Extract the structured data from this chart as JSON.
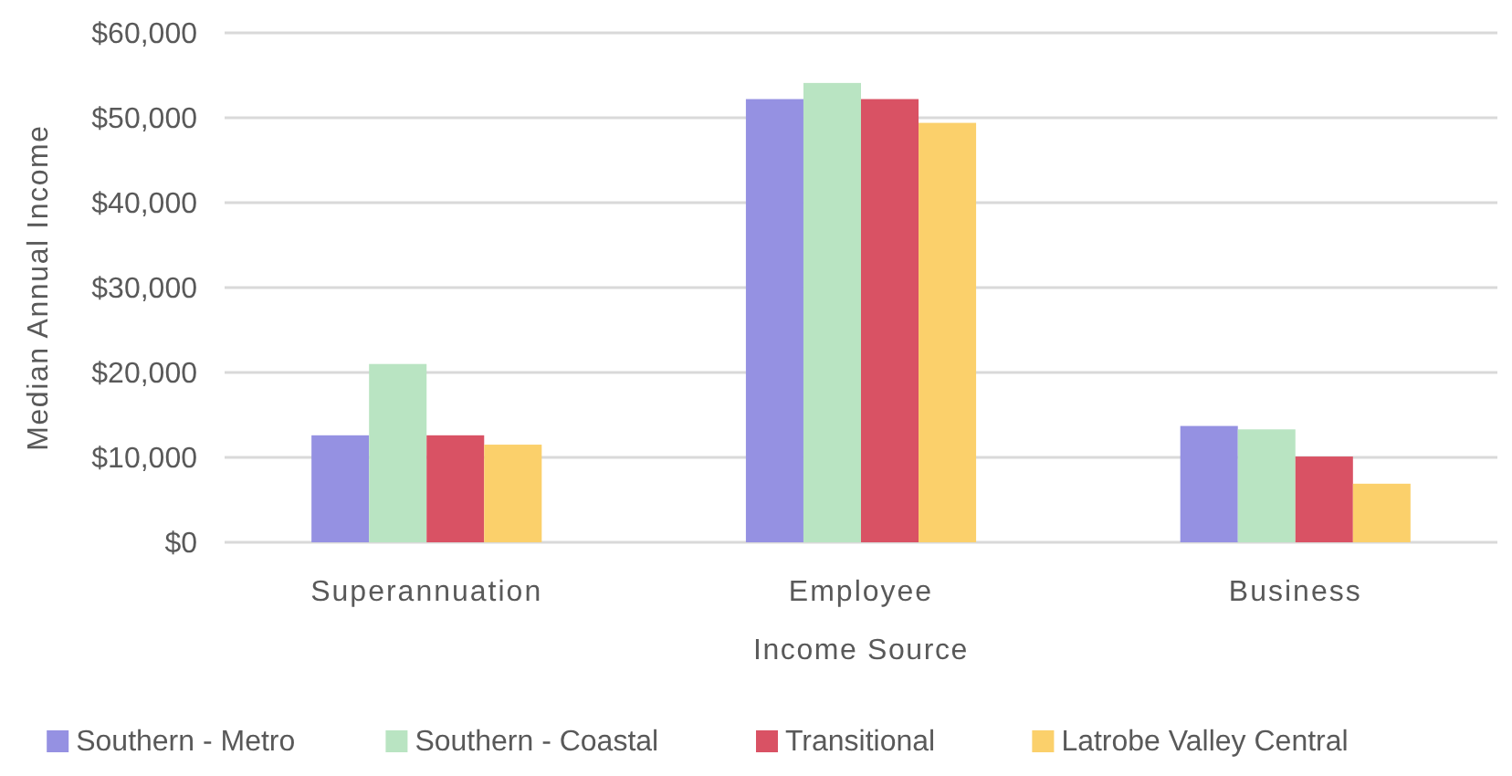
{
  "chart_data": {
    "type": "bar",
    "xlabel": "Income Source",
    "ylabel": "Median Annual Income",
    "categories": [
      "Superannuation",
      "Employee",
      "Business"
    ],
    "series": [
      {
        "name": "Southern - Metro",
        "color": "#9591e2",
        "values": [
          12600,
          52200,
          13700
        ]
      },
      {
        "name": "Southern - Coastal",
        "color": "#b9e4c2",
        "values": [
          21000,
          54100,
          13300
        ]
      },
      {
        "name": "Transitional",
        "color": "#d95264",
        "values": [
          12600,
          52200,
          10100
        ]
      },
      {
        "name": "Latrobe Valley Central",
        "color": "#fbd06b",
        "values": [
          11500,
          49400,
          6900
        ]
      }
    ],
    "ylim": [
      0,
      60000
    ],
    "yticks": [
      {
        "value": 0,
        "label": "$0"
      },
      {
        "value": 10000,
        "label": "$10,000"
      },
      {
        "value": 20000,
        "label": "$20,000"
      },
      {
        "value": 30000,
        "label": "$30,000"
      },
      {
        "value": 40000,
        "label": "$40,000"
      },
      {
        "value": 50000,
        "label": "$50,000"
      },
      {
        "value": 60000,
        "label": "$60,000"
      }
    ],
    "grid": "y",
    "legend": "bottom"
  }
}
